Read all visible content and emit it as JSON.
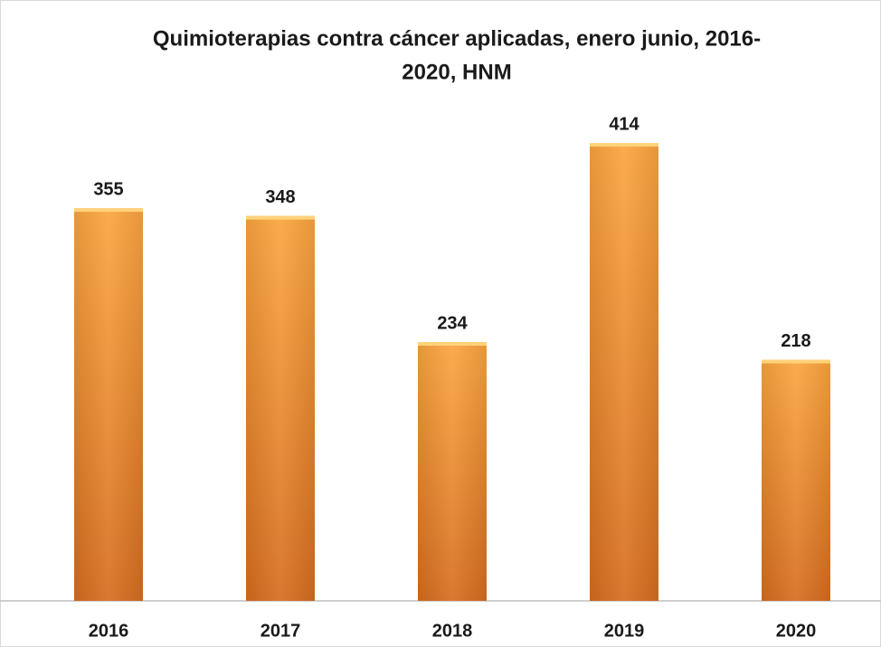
{
  "chart_data": {
    "type": "bar",
    "title": [
      "Quimioterapias contra cáncer aplicadas, enero junio, 2016-",
      "2020, HNM"
    ],
    "categories": [
      "2016",
      "2017",
      "2018",
      "2019",
      "2020"
    ],
    "values": [
      355,
      348,
      234,
      414,
      218
    ],
    "color": "#f7941d"
  }
}
